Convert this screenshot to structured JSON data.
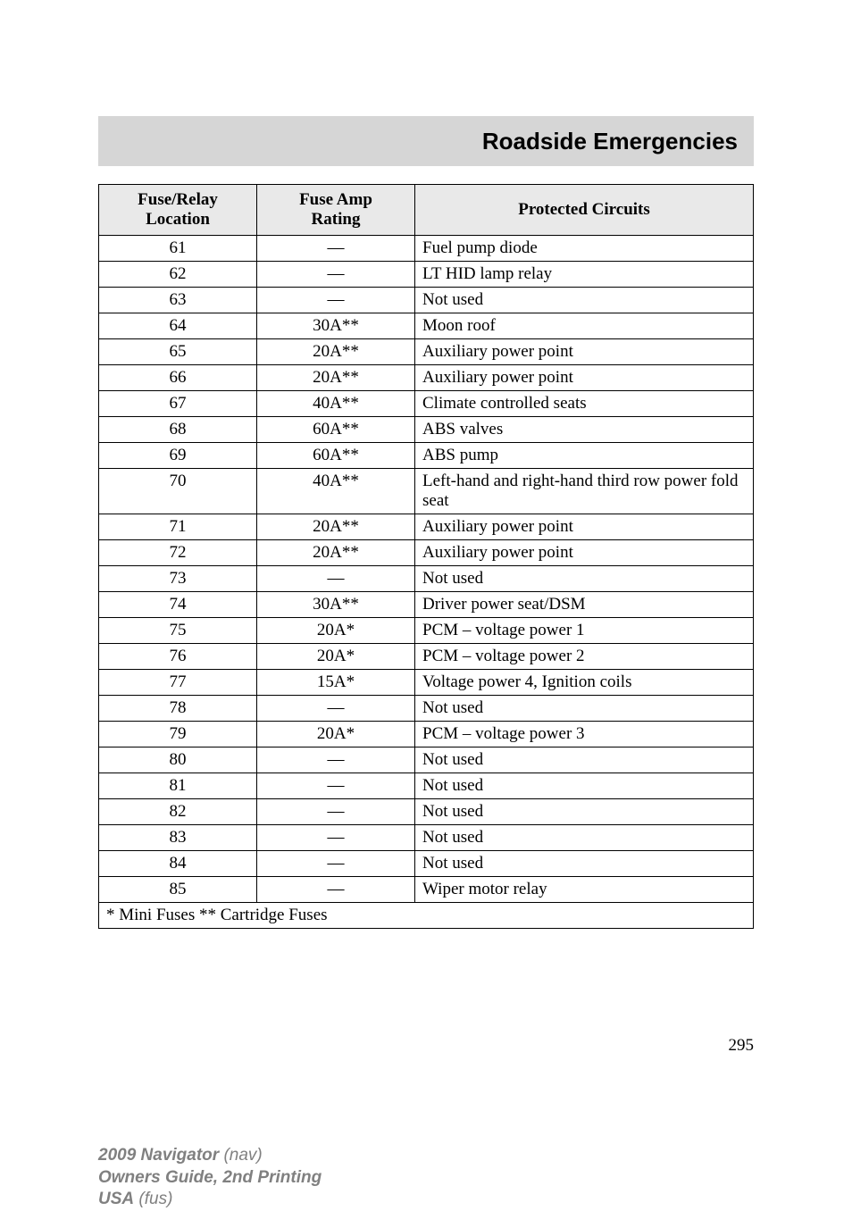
{
  "header": {
    "title": "Roadside Emergencies"
  },
  "table": {
    "colHeaders": {
      "loc1": "Fuse/Relay",
      "loc2": "Location",
      "amp1": "Fuse Amp",
      "amp2": "Rating",
      "circ": "Protected Circuits"
    },
    "rows": [
      {
        "loc": "61",
        "amp": "—",
        "circ": "Fuel pump diode"
      },
      {
        "loc": "62",
        "amp": "—",
        "circ": "LT HID lamp relay"
      },
      {
        "loc": "63",
        "amp": "—",
        "circ": "Not used"
      },
      {
        "loc": "64",
        "amp": "30A**",
        "circ": "Moon roof"
      },
      {
        "loc": "65",
        "amp": "20A**",
        "circ": "Auxiliary power point"
      },
      {
        "loc": "66",
        "amp": "20A**",
        "circ": "Auxiliary power point"
      },
      {
        "loc": "67",
        "amp": "40A**",
        "circ": "Climate controlled seats"
      },
      {
        "loc": "68",
        "amp": "60A**",
        "circ": "ABS valves"
      },
      {
        "loc": "69",
        "amp": "60A**",
        "circ": "ABS pump"
      },
      {
        "loc": "70",
        "amp": "40A**",
        "circ": "Left-hand and right-hand third row power fold seat"
      },
      {
        "loc": "71",
        "amp": "20A**",
        "circ": "Auxiliary power point"
      },
      {
        "loc": "72",
        "amp": "20A**",
        "circ": "Auxiliary power point"
      },
      {
        "loc": "73",
        "amp": "—",
        "circ": "Not used"
      },
      {
        "loc": "74",
        "amp": "30A**",
        "circ": "Driver power seat/DSM"
      },
      {
        "loc": "75",
        "amp": "20A*",
        "circ": "PCM – voltage power 1"
      },
      {
        "loc": "76",
        "amp": "20A*",
        "circ": "PCM – voltage power 2"
      },
      {
        "loc": "77",
        "amp": "15A*",
        "circ": "Voltage power 4, Ignition coils"
      },
      {
        "loc": "78",
        "amp": "—",
        "circ": "Not used"
      },
      {
        "loc": "79",
        "amp": "20A*",
        "circ": "PCM – voltage power 3"
      },
      {
        "loc": "80",
        "amp": "—",
        "circ": "Not used"
      },
      {
        "loc": "81",
        "amp": "—",
        "circ": "Not used"
      },
      {
        "loc": "82",
        "amp": "—",
        "circ": "Not used"
      },
      {
        "loc": "83",
        "amp": "—",
        "circ": "Not used"
      },
      {
        "loc": "84",
        "amp": "—",
        "circ": "Not used"
      },
      {
        "loc": "85",
        "amp": "—",
        "circ": "Wiper motor relay"
      }
    ],
    "footnote": "* Mini Fuses ** Cartridge Fuses"
  },
  "pageNumber": "295",
  "footer": {
    "line1a": "2009 Navigator",
    "line1b": " (nav)",
    "line2": "Owners Guide, 2nd Printing",
    "line3a": "USA",
    "line3b": " (fus)"
  }
}
